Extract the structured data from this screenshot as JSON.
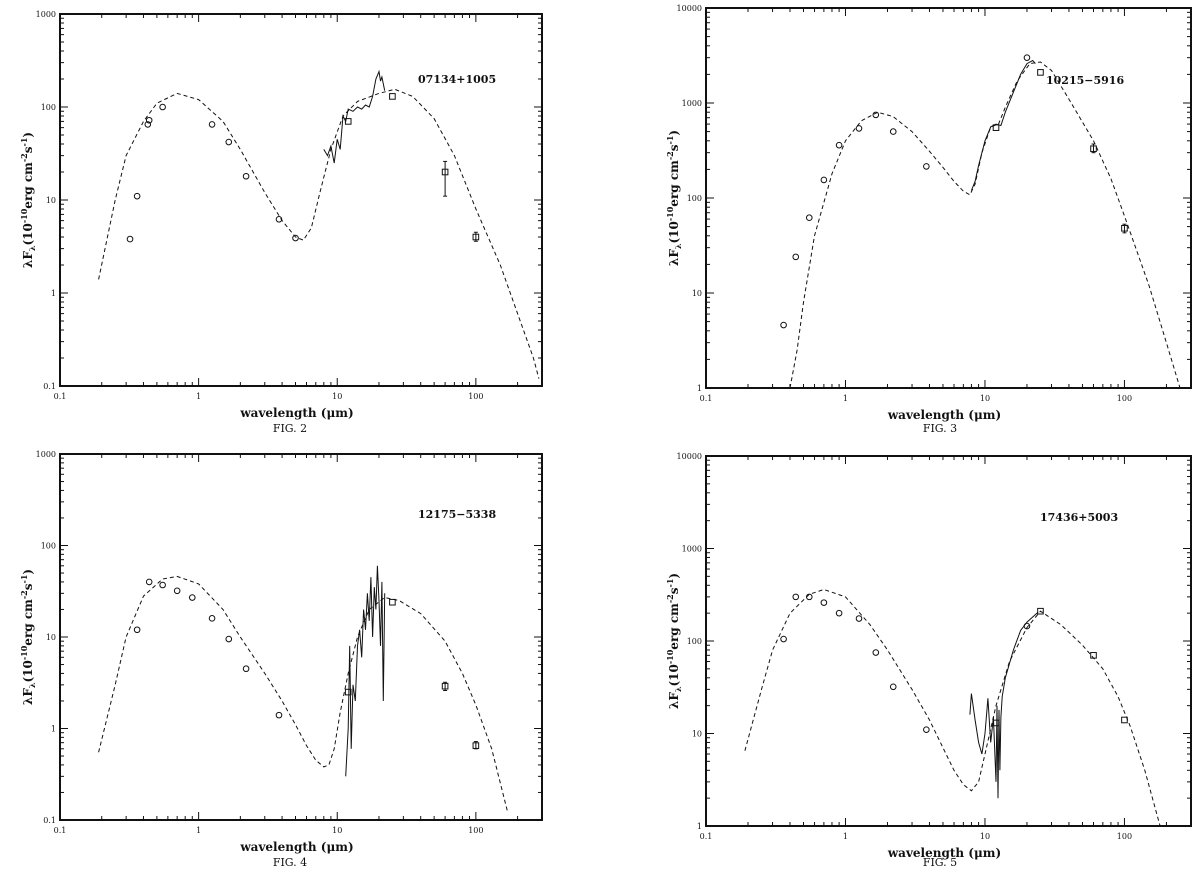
{
  "x_axis_label": "wavelength (μm)",
  "y_axis_label": "λF",
  "y_axis_label_sub": "λ",
  "y_axis_label_rest": "(10",
  "y_axis_label_exp": "-10",
  "y_axis_label_unit": "erg cm",
  "y_axis_label_exp2": "-2",
  "y_axis_label_s": "s",
  "y_axis_label_exp3": "-1",
  "y_axis_label_close": ")",
  "chart_data": [
    {
      "type": "scatter",
      "figure_label": "FIG. 2",
      "object": "07134+1005",
      "xscale": "log",
      "yscale": "log",
      "xlim": [
        0.1,
        300
      ],
      "ylim": [
        0.1,
        1000
      ],
      "x_ticks": [
        0.1,
        1,
        10,
        100
      ],
      "y_ticks": [
        0.1,
        1,
        10,
        100,
        1000
      ],
      "photometry_circles": [
        [
          0.32,
          3.8
        ],
        [
          0.36,
          11
        ],
        [
          0.43,
          65
        ],
        [
          0.44,
          72
        ],
        [
          0.55,
          100
        ],
        [
          1.25,
          65
        ],
        [
          1.65,
          42
        ],
        [
          2.2,
          18
        ],
        [
          3.8,
          6.2
        ],
        [
          5.0,
          3.9
        ]
      ],
      "iras_squares": [
        [
          12,
          70
        ],
        [
          25,
          130
        ],
        [
          60,
          20
        ],
        [
          100,
          4.0
        ]
      ],
      "error_bars": [
        [
          60,
          11,
          26
        ],
        [
          100,
          3.6,
          4.5
        ]
      ],
      "model": [
        [
          0.19,
          1.4
        ],
        [
          0.25,
          10
        ],
        [
          0.3,
          30
        ],
        [
          0.4,
          70
        ],
        [
          0.5,
          110
        ],
        [
          0.7,
          140
        ],
        [
          1.0,
          120
        ],
        [
          1.5,
          70
        ],
        [
          2.0,
          35
        ],
        [
          3.0,
          12
        ],
        [
          4.0,
          6
        ],
        [
          5.0,
          4
        ],
        [
          5.7,
          3.7
        ],
        [
          6.5,
          5
        ],
        [
          7.5,
          12
        ],
        [
          9.0,
          35
        ],
        [
          11,
          80
        ],
        [
          14,
          115
        ],
        [
          20,
          140
        ],
        [
          26,
          155
        ],
        [
          35,
          130
        ],
        [
          50,
          75
        ],
        [
          70,
          30
        ],
        [
          100,
          8
        ],
        [
          150,
          2
        ],
        [
          200,
          0.6
        ],
        [
          260,
          0.2
        ],
        [
          285,
          0.12
        ]
      ],
      "spectrum": [
        [
          8.0,
          35
        ],
        [
          8.5,
          30
        ],
        [
          9.0,
          38
        ],
        [
          9.5,
          25
        ],
        [
          10,
          45
        ],
        [
          10.5,
          35
        ],
        [
          11,
          80
        ],
        [
          11.5,
          70
        ],
        [
          12,
          95
        ],
        [
          13,
          90
        ],
        [
          14,
          100
        ],
        [
          15,
          95
        ],
        [
          16,
          105
        ],
        [
          17,
          100
        ],
        [
          18,
          130
        ],
        [
          19,
          200
        ],
        [
          20,
          240
        ],
        [
          20.5,
          190
        ],
        [
          21,
          210
        ],
        [
          22,
          150
        ]
      ]
    },
    {
      "type": "scatter",
      "figure_label": "FIG. 3",
      "object": "10215−5916",
      "xscale": "log",
      "yscale": "log",
      "xlim": [
        0.1,
        300
      ],
      "ylim": [
        1,
        10000
      ],
      "x_ticks": [
        0.1,
        1,
        10,
        100
      ],
      "y_ticks": [
        1,
        10,
        100,
        1000,
        10000
      ],
      "photometry_circles": [
        [
          0.36,
          4.6
        ],
        [
          0.44,
          24
        ],
        [
          0.55,
          62
        ],
        [
          0.7,
          155
        ],
        [
          0.9,
          360
        ],
        [
          1.25,
          540
        ],
        [
          1.65,
          750
        ],
        [
          2.2,
          500
        ],
        [
          3.8,
          215
        ],
        [
          20,
          3000
        ]
      ],
      "iras_squares": [
        [
          12,
          550
        ],
        [
          25,
          2100
        ],
        [
          60,
          330
        ],
        [
          100,
          48
        ]
      ],
      "error_bars": [
        [
          60,
          300,
          370
        ],
        [
          100,
          43,
          53
        ]
      ],
      "model": [
        [
          0.4,
          1
        ],
        [
          0.45,
          2.5
        ],
        [
          0.5,
          8
        ],
        [
          0.6,
          40
        ],
        [
          0.8,
          180
        ],
        [
          1.0,
          400
        ],
        [
          1.3,
          650
        ],
        [
          1.7,
          800
        ],
        [
          2.2,
          720
        ],
        [
          3.0,
          500
        ],
        [
          4.0,
          310
        ],
        [
          5.0,
          210
        ],
        [
          6.0,
          150
        ],
        [
          7.0,
          118
        ],
        [
          7.8,
          108
        ],
        [
          8.5,
          140
        ],
        [
          9.5,
          300
        ],
        [
          11,
          560
        ],
        [
          12.5,
          600
        ],
        [
          14,
          900
        ],
        [
          17,
          1700
        ],
        [
          21,
          2600
        ],
        [
          25,
          2700
        ],
        [
          30,
          2200
        ],
        [
          40,
          1100
        ],
        [
          60,
          400
        ],
        [
          80,
          160
        ],
        [
          100,
          65
        ],
        [
          150,
          12
        ],
        [
          200,
          3
        ],
        [
          250,
          1
        ]
      ],
      "spectrum": [
        [
          8.0,
          120
        ],
        [
          8.5,
          150
        ],
        [
          9.0,
          220
        ],
        [
          10,
          400
        ],
        [
          11,
          560
        ],
        [
          12,
          600
        ],
        [
          13,
          580
        ],
        [
          14,
          800
        ],
        [
          16,
          1300
        ],
        [
          18,
          2000
        ],
        [
          20,
          2600
        ],
        [
          22,
          2800
        ],
        [
          23,
          2600
        ]
      ]
    },
    {
      "type": "scatter",
      "figure_label": "FIG. 4",
      "object": "12175−5338",
      "xscale": "log",
      "yscale": "log",
      "xlim": [
        0.1,
        300
      ],
      "ylim": [
        0.1,
        1000
      ],
      "x_ticks": [
        0.1,
        1,
        10,
        100
      ],
      "y_ticks": [
        0.1,
        1,
        10,
        100,
        1000
      ],
      "photometry_circles": [
        [
          0.36,
          12
        ],
        [
          0.44,
          40
        ],
        [
          0.55,
          37
        ],
        [
          0.7,
          32
        ],
        [
          0.9,
          27
        ],
        [
          1.25,
          16
        ],
        [
          1.65,
          9.5
        ],
        [
          2.2,
          4.5
        ],
        [
          3.8,
          1.4
        ]
      ],
      "iras_squares": [
        [
          12,
          2.5
        ],
        [
          25,
          24
        ],
        [
          60,
          2.9
        ],
        [
          100,
          0.65
        ]
      ],
      "error_bars": [
        [
          60,
          2.6,
          3.2
        ],
        [
          100,
          0.6,
          0.72
        ]
      ],
      "model": [
        [
          0.19,
          0.55
        ],
        [
          0.25,
          3
        ],
        [
          0.3,
          10
        ],
        [
          0.4,
          28
        ],
        [
          0.55,
          43
        ],
        [
          0.7,
          46
        ],
        [
          1.0,
          38
        ],
        [
          1.5,
          20
        ],
        [
          2.0,
          10
        ],
        [
          3.0,
          4
        ],
        [
          4.0,
          2
        ],
        [
          5.0,
          1.1
        ],
        [
          6.0,
          0.65
        ],
        [
          7.0,
          0.45
        ],
        [
          8.0,
          0.38
        ],
        [
          8.7,
          0.4
        ],
        [
          9.5,
          0.6
        ],
        [
          10.5,
          1.5
        ],
        [
          12,
          4
        ],
        [
          14,
          10
        ],
        [
          17,
          20
        ],
        [
          22,
          27
        ],
        [
          28,
          25
        ],
        [
          40,
          18
        ],
        [
          60,
          9
        ],
        [
          80,
          4
        ],
        [
          100,
          1.8
        ],
        [
          130,
          0.6
        ],
        [
          170,
          0.12
        ]
      ],
      "spectrum": [
        [
          11.5,
          0.3
        ],
        [
          12.0,
          1.0
        ],
        [
          12.3,
          8.0
        ],
        [
          12.6,
          0.6
        ],
        [
          13.0,
          3.0
        ],
        [
          13.5,
          2.0
        ],
        [
          14.0,
          8.0
        ],
        [
          14.5,
          12
        ],
        [
          15,
          6
        ],
        [
          15.5,
          20
        ],
        [
          16,
          12
        ],
        [
          16.5,
          30
        ],
        [
          17,
          15
        ],
        [
          17.5,
          45
        ],
        [
          18,
          10
        ],
        [
          18.5,
          35
        ],
        [
          19,
          20
        ],
        [
          19.5,
          60
        ],
        [
          20,
          25
        ],
        [
          20.5,
          8
        ],
        [
          21,
          40
        ],
        [
          21.5,
          2
        ],
        [
          22,
          30
        ]
      ]
    },
    {
      "type": "scatter",
      "figure_label": "FIG. 5",
      "object": "17436+5003",
      "xscale": "log",
      "yscale": "log",
      "xlim": [
        0.1,
        300
      ],
      "ylim": [
        1,
        10000
      ],
      "x_ticks": [
        0.1,
        1,
        10,
        100
      ],
      "y_ticks": [
        1,
        10,
        100,
        1000,
        10000
      ],
      "photometry_circles": [
        [
          0.36,
          105
        ],
        [
          0.44,
          300
        ],
        [
          0.55,
          300
        ],
        [
          0.7,
          260
        ],
        [
          0.9,
          200
        ],
        [
          1.25,
          175
        ],
        [
          1.65,
          75
        ],
        [
          2.2,
          32
        ],
        [
          3.8,
          11
        ],
        [
          20,
          145
        ]
      ],
      "iras_squares": [
        [
          12,
          13
        ],
        [
          25,
          210
        ],
        [
          60,
          70
        ],
        [
          100,
          14
        ]
      ],
      "error_bars": [],
      "model": [
        [
          0.19,
          6.5
        ],
        [
          0.25,
          30
        ],
        [
          0.3,
          80
        ],
        [
          0.4,
          200
        ],
        [
          0.55,
          320
        ],
        [
          0.7,
          360
        ],
        [
          1.0,
          300
        ],
        [
          1.5,
          150
        ],
        [
          2.0,
          80
        ],
        [
          3.0,
          30
        ],
        [
          4.0,
          14
        ],
        [
          5.0,
          7
        ],
        [
          6.0,
          4
        ],
        [
          7.0,
          2.8
        ],
        [
          8.0,
          2.4
        ],
        [
          9.0,
          3.0
        ],
        [
          10,
          6
        ],
        [
          12,
          20
        ],
        [
          15,
          60
        ],
        [
          20,
          140
        ],
        [
          25,
          210
        ],
        [
          35,
          150
        ],
        [
          50,
          90
        ],
        [
          70,
          50
        ],
        [
          90,
          25
        ],
        [
          110,
          12
        ],
        [
          140,
          4
        ],
        [
          180,
          1
        ]
      ],
      "spectrum": [
        [
          7.8,
          16
        ],
        [
          8.0,
          27
        ],
        [
          8.5,
          14
        ],
        [
          9.0,
          8
        ],
        [
          9.5,
          6
        ],
        [
          10,
          10
        ],
        [
          10.5,
          24
        ],
        [
          11,
          8
        ],
        [
          11.5,
          15
        ],
        [
          12,
          3
        ],
        [
          12.2,
          20
        ],
        [
          12.4,
          2
        ],
        [
          12.6,
          18
        ],
        [
          12.8,
          4
        ],
        [
          13.0,
          15
        ],
        [
          13.3,
          25
        ],
        [
          14,
          40
        ],
        [
          16,
          80
        ],
        [
          18,
          130
        ],
        [
          20,
          160
        ],
        [
          24,
          205
        ]
      ]
    }
  ]
}
